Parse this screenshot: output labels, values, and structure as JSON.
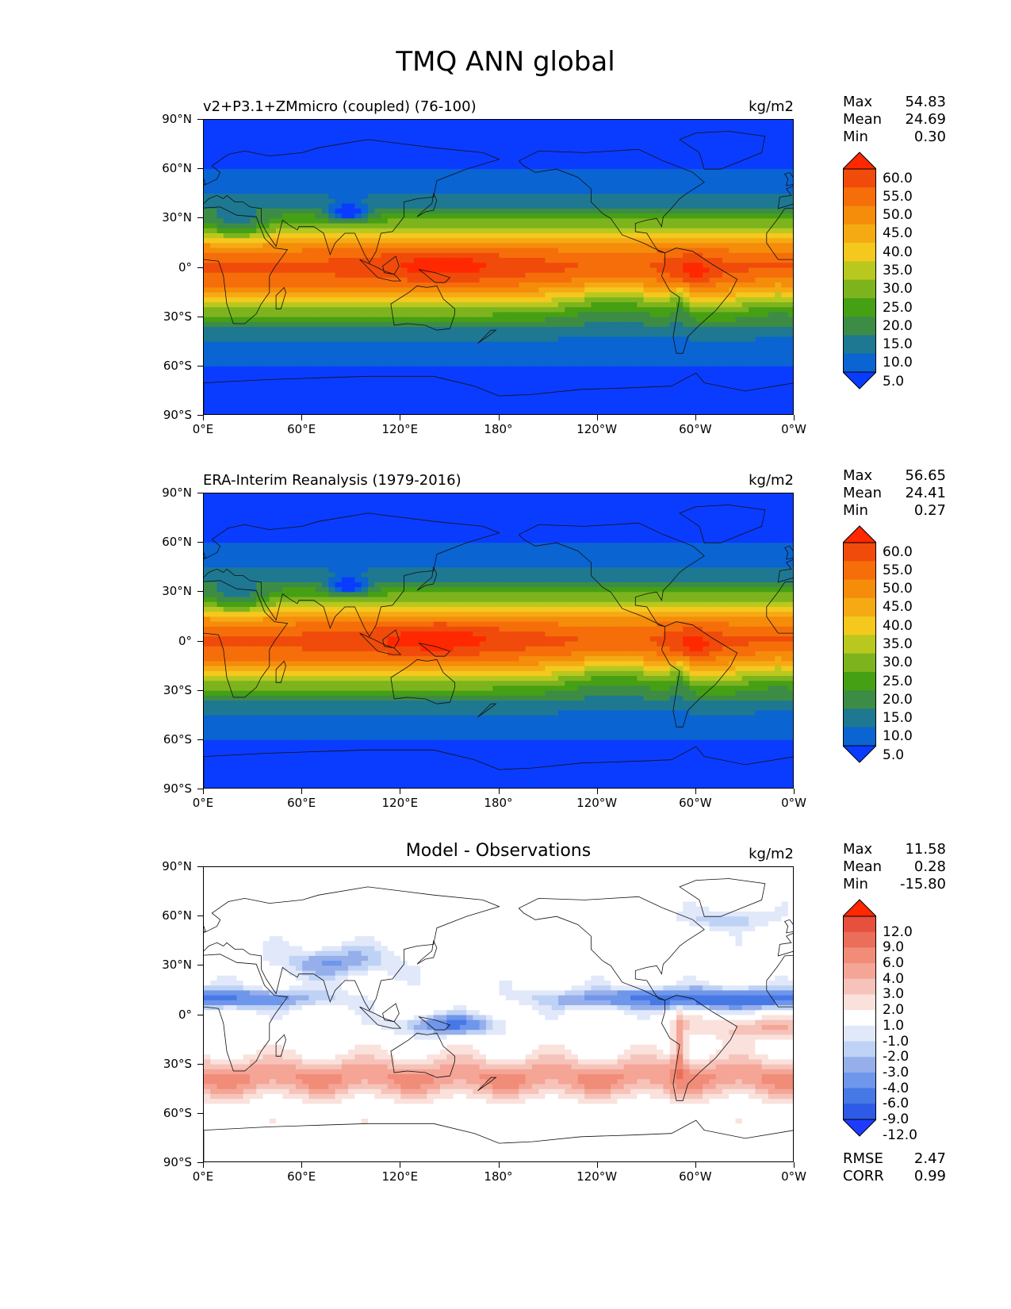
{
  "figure_title": "TMQ ANN global",
  "lat_labels": [
    "90°N",
    "60°N",
    "30°N",
    "0°",
    "30°S",
    "60°S",
    "90°S"
  ],
  "lon_labels": [
    "0°E",
    "60°E",
    "120°E",
    "180°",
    "120°W",
    "60°W",
    "0°W"
  ],
  "colors": {
    "abs_scale": [
      "#0a3cff",
      "#0a64d2",
      "#1e7891",
      "#3c8c46",
      "#46a014",
      "#7db41e",
      "#b9c81e",
      "#f5c81e",
      "#f5aa14",
      "#f58c0a",
      "#f56e0a",
      "#f04b0a",
      "#ff2800"
    ],
    "diff_scale": [
      "#1e3cff",
      "#2d5ae6",
      "#4678e6",
      "#6e96eb",
      "#96afeb",
      "#bed2f5",
      "#e1e8fa",
      "#ffffff",
      "#fae1dc",
      "#f5c3b9",
      "#f5a596",
      "#f08c78",
      "#eb6e5a",
      "#e6503c",
      "#ff2800"
    ]
  },
  "panels": [
    {
      "title": "v2+P3.1+ZMmicro (coupled) (76-100)",
      "title_style": "left",
      "units": "kg/m2",
      "stats": {
        "max_label": "Max",
        "max": "54.83",
        "mean_label": "Mean",
        "mean": "24.69",
        "min_label": "Min",
        "min": "0.30"
      },
      "colorbar_type": "abs",
      "colorbar_labels": [
        "60.0",
        "55.0",
        "50.0",
        "45.0",
        "40.0",
        "35.0",
        "30.0",
        "25.0",
        "20.0",
        "15.0",
        "10.0",
        "5.0"
      ]
    },
    {
      "title": "ERA-Interim Reanalysis (1979-2016)",
      "title_style": "left",
      "units": "kg/m2",
      "stats": {
        "max_label": "Max",
        "max": "56.65",
        "mean_label": "Mean",
        "mean": "24.41",
        "min_label": "Min",
        "min": "0.27"
      },
      "colorbar_type": "abs",
      "colorbar_labels": [
        "60.0",
        "55.0",
        "50.0",
        "45.0",
        "40.0",
        "35.0",
        "30.0",
        "25.0",
        "20.0",
        "15.0",
        "10.0",
        "5.0"
      ]
    },
    {
      "title": "Model - Observations",
      "title_style": "center",
      "units": "kg/m2",
      "stats": {
        "max_label": "Max",
        "max": "11.58",
        "mean_label": "Mean",
        "mean": "0.28",
        "min_label": "Min",
        "min": "-15.80"
      },
      "colorbar_type": "diff",
      "colorbar_labels": [
        "12.0",
        "9.0",
        "6.0",
        "4.0",
        "3.0",
        "2.0",
        "1.0",
        "-1.0",
        "-2.0",
        "-3.0",
        "-4.0",
        "-6.0",
        "-9.0",
        "-12.0"
      ],
      "extra_stats": {
        "rmse_label": "RMSE",
        "rmse": "2.47",
        "corr_label": "CORR",
        "corr": "0.99"
      }
    }
  ]
}
